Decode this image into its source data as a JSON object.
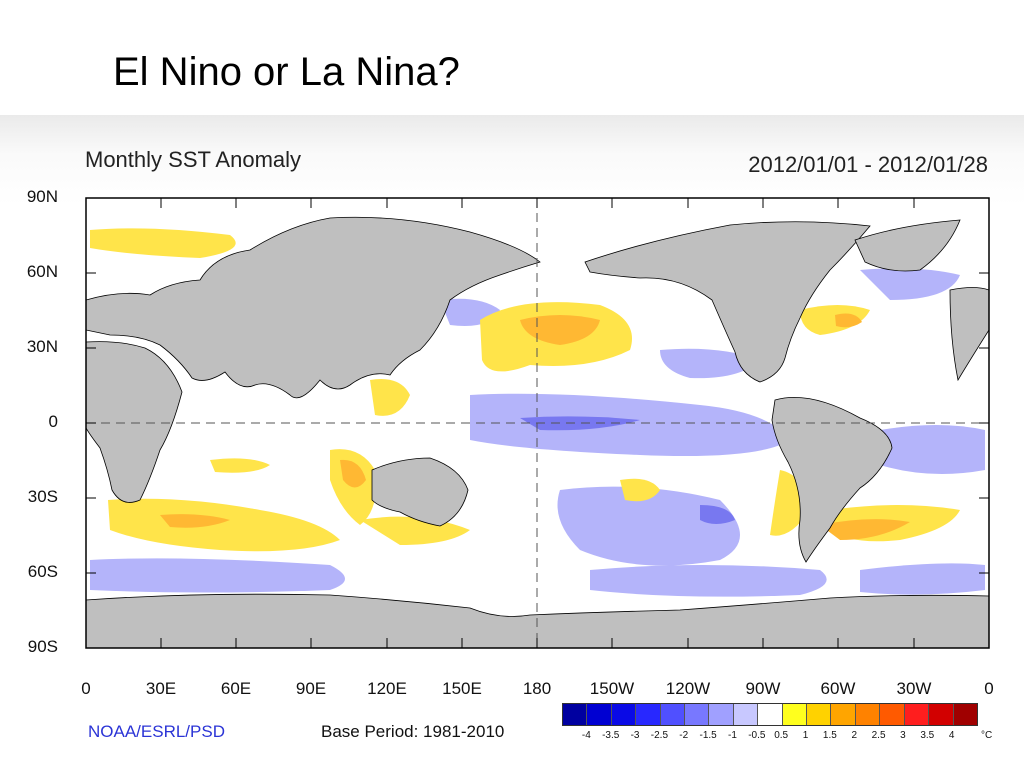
{
  "slide": {
    "title": "El Nino or La Nina?"
  },
  "map": {
    "title": "Monthly SST Anomaly",
    "date_range": "2012/01/01 - 2012/01/28",
    "lat_labels": [
      "90N",
      "60N",
      "30N",
      "0",
      "30S",
      "60S",
      "90S"
    ],
    "lon_labels": [
      "0",
      "30E",
      "60E",
      "90E",
      "120E",
      "150E",
      "180",
      "150W",
      "120W",
      "90W",
      "60W",
      "30W",
      "0"
    ],
    "credit": "NOAA/ESRL/PSD",
    "base_period": "Base Period: 1981-2010",
    "colors": {
      "land": "#bfbfbf",
      "ocean": "#ffffff",
      "coast": "#000000",
      "positive_anomaly": "#ffd21a",
      "negative_anomaly": "#b4b4fa"
    }
  },
  "legend": {
    "labels": [
      "-4",
      "-3.5",
      "-3",
      "-2.5",
      "-2",
      "-1.5",
      "-1",
      "-0.5",
      "0.5",
      "1",
      "1.5",
      "2",
      "2.5",
      "3",
      "3.5",
      "4"
    ],
    "unit": "°C",
    "colors": [
      "#0000a0",
      "#0000d2",
      "#0a0ae6",
      "#2828ff",
      "#5050ff",
      "#7878ff",
      "#a0a0ff",
      "#c8c8ff",
      "#ffffff",
      "#ffff1e",
      "#ffd200",
      "#ffa500",
      "#ff8200",
      "#ff5a00",
      "#ff1e1e",
      "#d20000",
      "#a00000"
    ]
  }
}
